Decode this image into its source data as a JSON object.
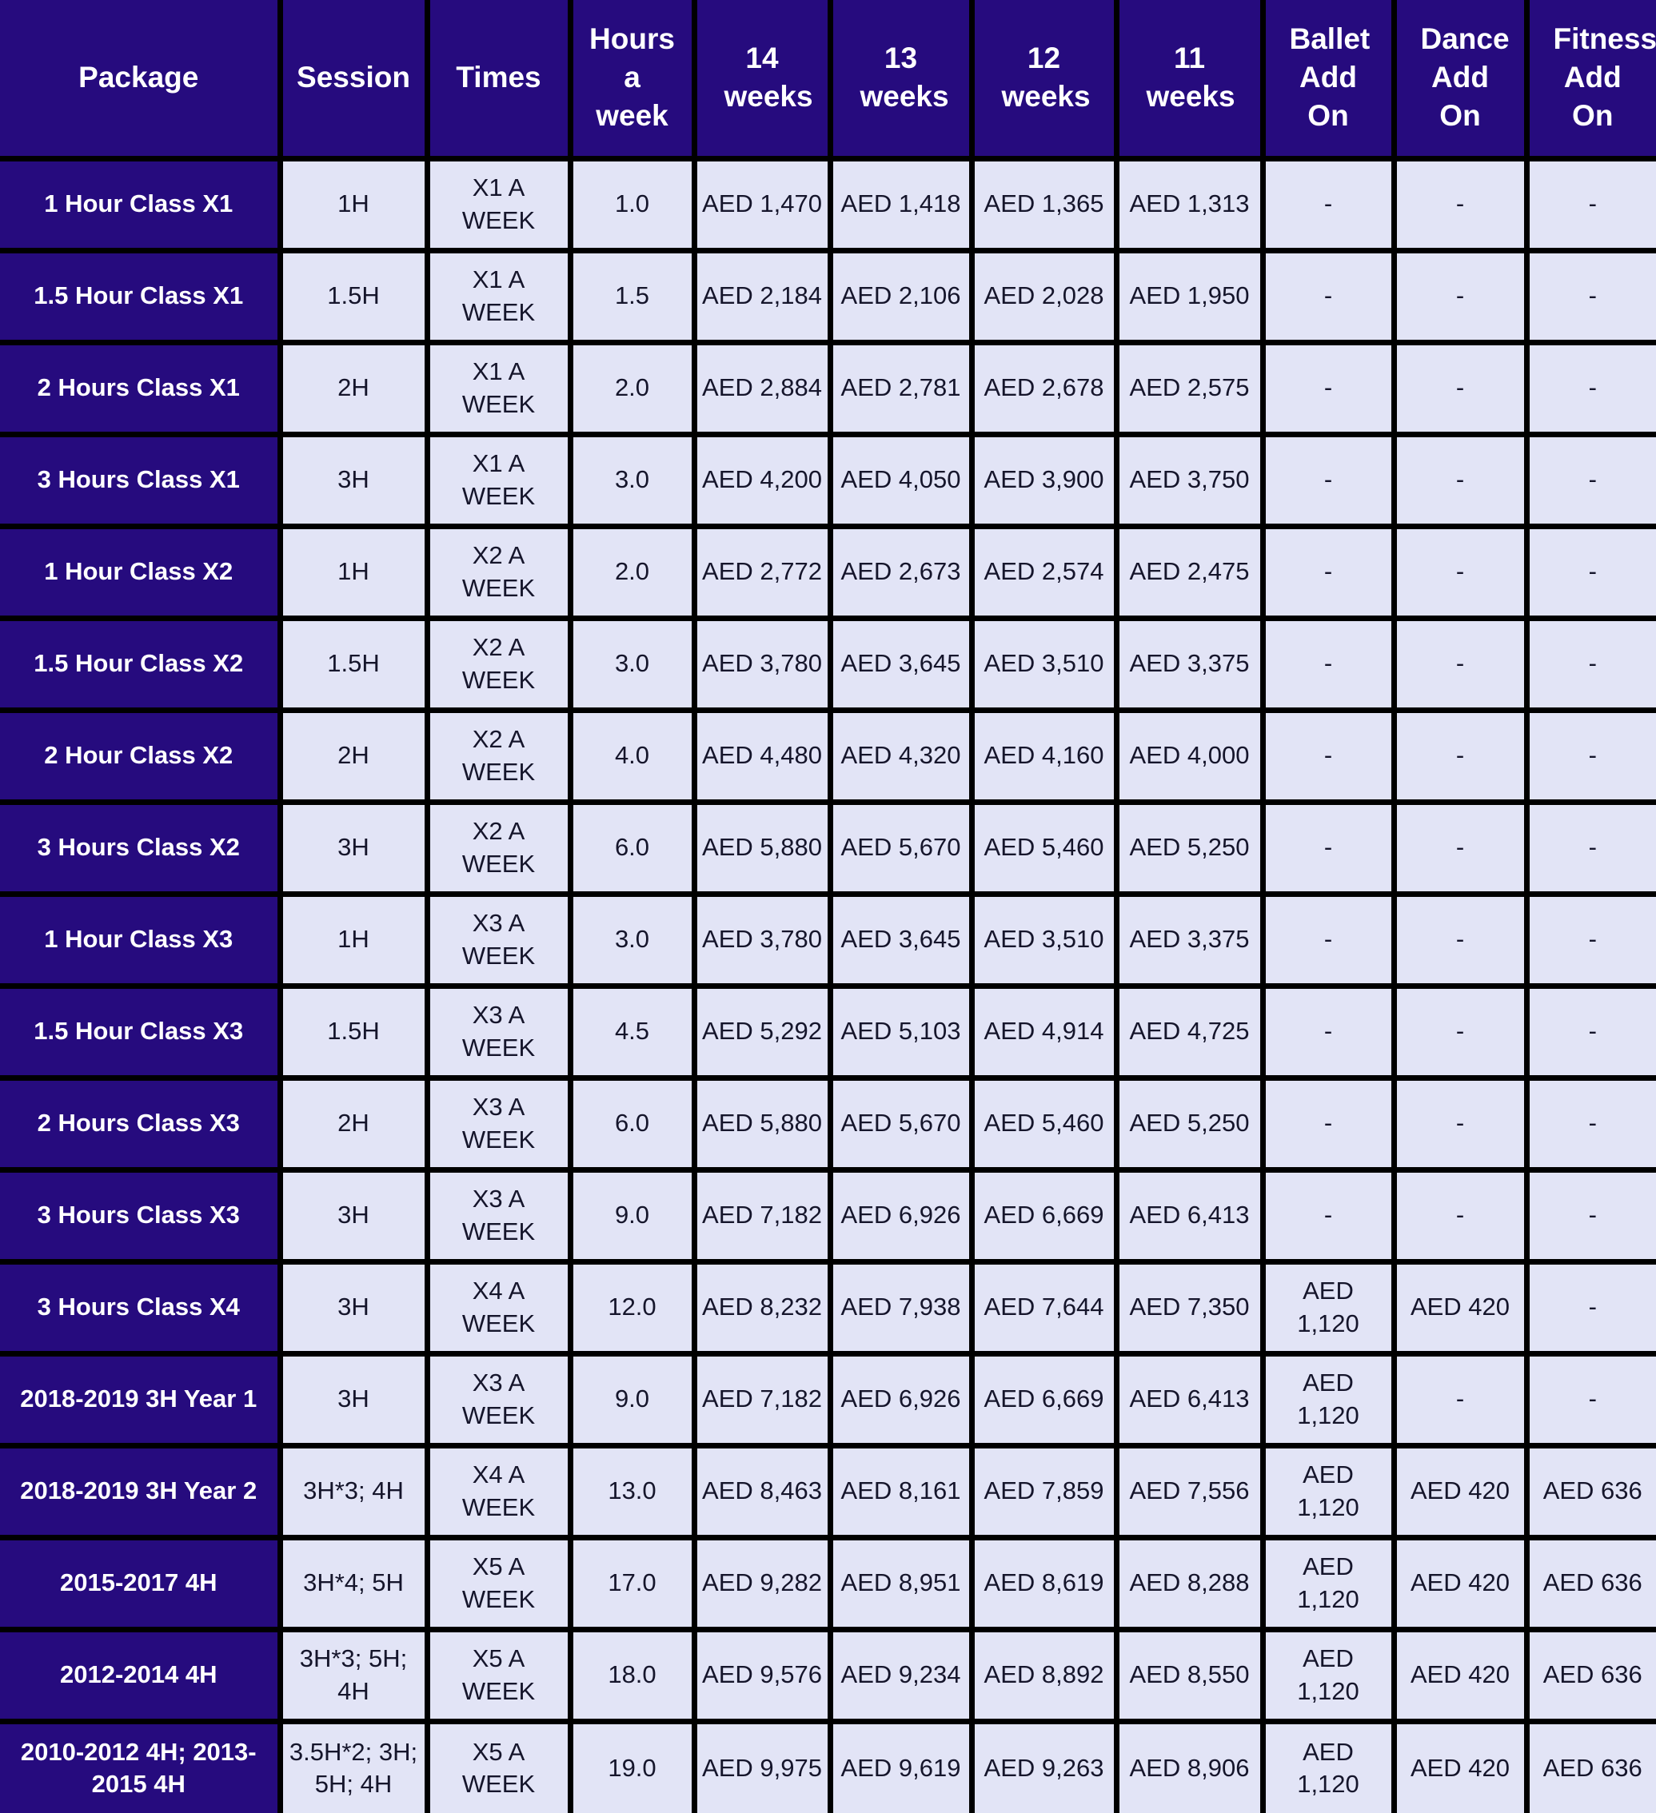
{
  "colors": {
    "header_bg": "#260B7E",
    "package_column_bg": "#260B7E",
    "cell_bg": "#E2E4F6",
    "grid_border": "#000000",
    "header_text": "#FFFFFF",
    "cell_text": "#15152B"
  },
  "chart_data": {
    "type": "table",
    "columns": [
      "Package",
      "Session",
      "Times",
      "Hours a week",
      "14 weeks",
      "13 weeks",
      "12 weeks",
      "11 weeks",
      "Ballet Add On",
      "Dance Add On",
      "Fitness Add On"
    ],
    "rows": [
      [
        "1 Hour Class X1",
        "1H",
        "X1 A WEEK",
        "1.0",
        "AED 1,470",
        "AED 1,418",
        "AED 1,365",
        "AED 1,313",
        "-",
        "-",
        "-"
      ],
      [
        "1.5 Hour Class X1",
        "1.5H",
        "X1 A WEEK",
        "1.5",
        "AED 2,184",
        "AED 2,106",
        "AED 2,028",
        "AED 1,950",
        "-",
        "-",
        "-"
      ],
      [
        "2 Hours Class X1",
        "2H",
        "X1 A WEEK",
        "2.0",
        "AED 2,884",
        "AED 2,781",
        "AED 2,678",
        "AED 2,575",
        "-",
        "-",
        "-"
      ],
      [
        "3 Hours Class X1",
        "3H",
        "X1 A WEEK",
        "3.0",
        "AED 4,200",
        "AED 4,050",
        "AED 3,900",
        "AED 3,750",
        "-",
        "-",
        "-"
      ],
      [
        "1 Hour Class X2",
        "1H",
        "X2 A WEEK",
        "2.0",
        "AED 2,772",
        "AED 2,673",
        "AED 2,574",
        "AED 2,475",
        "-",
        "-",
        "-"
      ],
      [
        "1.5 Hour Class X2",
        "1.5H",
        "X2 A WEEK",
        "3.0",
        "AED 3,780",
        "AED 3,645",
        "AED 3,510",
        "AED 3,375",
        "-",
        "-",
        "-"
      ],
      [
        "2 Hour Class X2",
        "2H",
        "X2 A WEEK",
        "4.0",
        "AED 4,480",
        "AED 4,320",
        "AED 4,160",
        "AED 4,000",
        "-",
        "-",
        "-"
      ],
      [
        "3 Hours Class X2",
        "3H",
        "X2 A WEEK",
        "6.0",
        "AED 5,880",
        "AED 5,670",
        "AED 5,460",
        "AED 5,250",
        "-",
        "-",
        "-"
      ],
      [
        "1 Hour Class X3",
        "1H",
        "X3 A WEEK",
        "3.0",
        "AED 3,780",
        "AED 3,645",
        "AED 3,510",
        "AED 3,375",
        "-",
        "-",
        "-"
      ],
      [
        "1.5 Hour Class X3",
        "1.5H",
        "X3 A WEEK",
        "4.5",
        "AED 5,292",
        "AED 5,103",
        "AED 4,914",
        "AED 4,725",
        "-",
        "-",
        "-"
      ],
      [
        "2 Hours Class X3",
        "2H",
        "X3 A WEEK",
        "6.0",
        "AED 5,880",
        "AED 5,670",
        "AED 5,460",
        "AED 5,250",
        "-",
        "-",
        "-"
      ],
      [
        "3 Hours Class X3",
        "3H",
        "X3 A WEEK",
        "9.0",
        "AED 7,182",
        "AED 6,926",
        "AED 6,669",
        "AED 6,413",
        "-",
        "-",
        "-"
      ],
      [
        "3 Hours Class X4",
        "3H",
        "X4 A WEEK",
        "12.0",
        "AED 8,232",
        "AED 7,938",
        "AED 7,644",
        "AED 7,350",
        "AED 1,120",
        "AED 420",
        "-"
      ],
      [
        "2018-2019 3H Year 1",
        "3H",
        "X3 A WEEK",
        "9.0",
        "AED 7,182",
        "AED 6,926",
        "AED 6,669",
        "AED 6,413",
        "AED 1,120",
        "-",
        "-"
      ],
      [
        "2018-2019 3H Year 2",
        "3H*3; 4H",
        "X4 A WEEK",
        "13.0",
        "AED 8,463",
        "AED 8,161",
        "AED 7,859",
        "AED 7,556",
        "AED 1,120",
        "AED 420",
        "AED 636"
      ],
      [
        "2015-2017 4H",
        "3H*4; 5H",
        "X5 A WEEK",
        "17.0",
        "AED 9,282",
        "AED 8,951",
        "AED 8,619",
        "AED 8,288",
        "AED 1,120",
        "AED 420",
        "AED 636"
      ],
      [
        "2012-2014 4H",
        "3H*3; 5H; 4H",
        "X5 A WEEK",
        "18.0",
        "AED 9,576",
        "AED 9,234",
        "AED 8,892",
        "AED 8,550",
        "AED 1,120",
        "AED 420",
        "AED 636"
      ],
      [
        "2010-2012 4H; 2013-2015 4H",
        "3.5H*2; 3H; 5H; 4H",
        "X5 A WEEK",
        "19.0",
        "AED 9,975",
        "AED 9,619",
        "AED 9,263",
        "AED 8,906",
        "AED 1,120",
        "AED 420",
        "AED 636"
      ]
    ]
  }
}
